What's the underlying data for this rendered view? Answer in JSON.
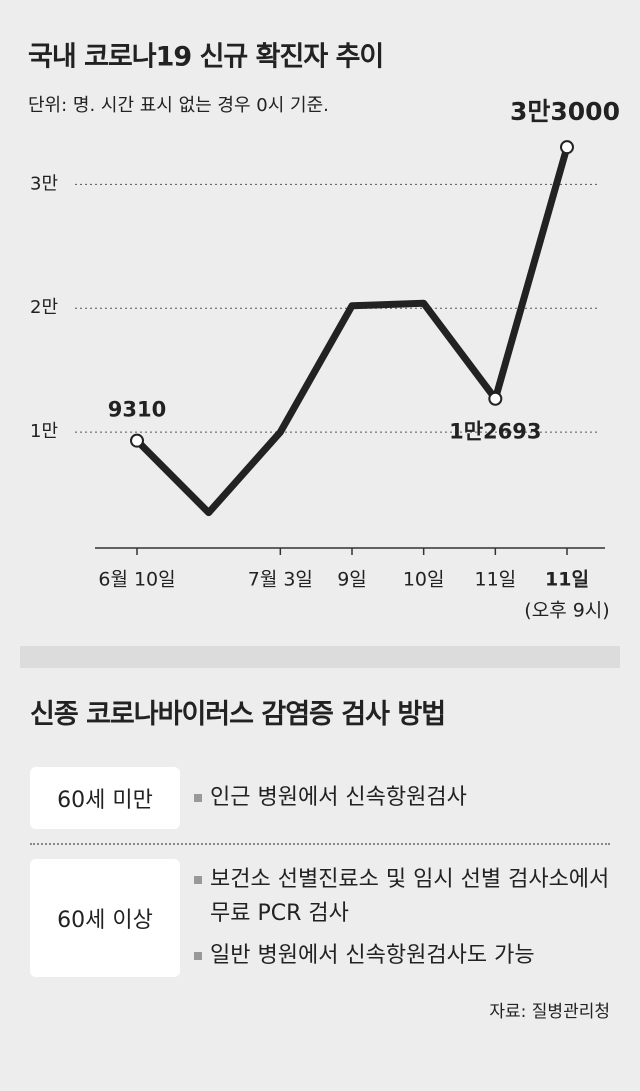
{
  "chart_data": {
    "type": "line",
    "title": "국내 코로나19 신규 확진자 추이",
    "subtitle": "단위: 명. 시간 표시 없는 경우 0시 기준.",
    "categories": [
      "6월 10일",
      null,
      "7월 3일",
      "9일",
      "10일",
      "11일",
      "11일"
    ],
    "category_note": "(오후 9시)",
    "values": [
      9310,
      3500,
      10000,
      20200,
      20400,
      12693,
      33000
    ],
    "value_labels": [
      "9310",
      null,
      null,
      null,
      null,
      "1만2693",
      "3만3000"
    ],
    "color": "#222222",
    "ylim": [
      0,
      36000
    ],
    "yticks": [
      {
        "value": 10000,
        "label": "1만"
      },
      {
        "value": 20000,
        "label": "2만"
      },
      {
        "value": 30000,
        "label": "3만"
      }
    ],
    "grid": true
  },
  "testing": {
    "title": "신종 코로나바이러스 감염증 검사 방법",
    "rows": [
      {
        "group": "60세 미만",
        "items": [
          "인근 병원에서 신속항원검사"
        ]
      },
      {
        "group": "60세 이상",
        "items": [
          "보건소 선별진료소 및 임시 선별 검사소에서 무료 PCR 검사",
          "일반 병원에서 신속항원검사도 가능"
        ]
      }
    ],
    "source": "자료: 질병관리청"
  }
}
